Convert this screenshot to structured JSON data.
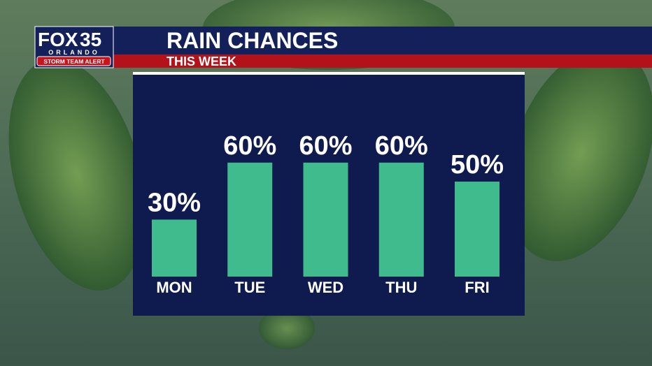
{
  "branding": {
    "network": "FOX",
    "channel": "35",
    "city": "ORLANDO",
    "alert": "STORM TEAM ALERT"
  },
  "chart_data": {
    "type": "bar",
    "title": "RAIN CHANCES",
    "subtitle": "THIS WEEK",
    "categories": [
      "MON",
      "TUE",
      "WED",
      "THU",
      "FRI"
    ],
    "values": [
      30,
      60,
      60,
      60,
      50
    ],
    "value_labels": [
      "30%",
      "60%",
      "60%",
      "60%",
      "50%"
    ],
    "color": "#3fbb8d"
  }
}
